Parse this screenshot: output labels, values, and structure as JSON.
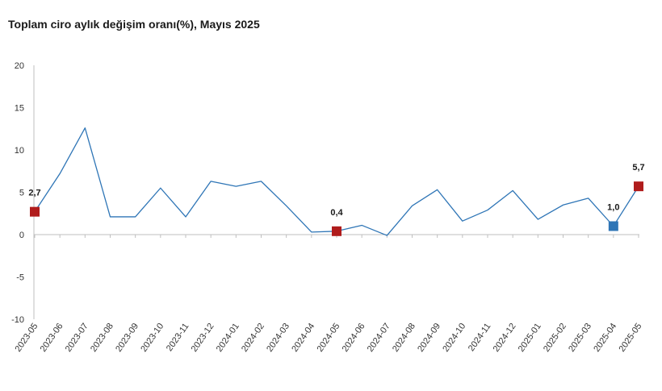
{
  "chart_data": {
    "type": "line",
    "title": "Toplam ciro aylık değişim oranı(%), Mayıs 2025",
    "xlabel": "",
    "ylabel": "",
    "ylim": [
      -10,
      20
    ],
    "yticks": [
      -10,
      -5,
      0,
      5,
      10,
      15,
      20
    ],
    "ytick_labels": [
      "-10",
      "-5",
      "0",
      "5",
      "10",
      "15",
      "20"
    ],
    "grid": false,
    "categories": [
      "2023-05",
      "2023-06",
      "2023-07",
      "2023-08",
      "2023-09",
      "2023-10",
      "2023-11",
      "2023-12",
      "2024-01",
      "2024-02",
      "2024-03",
      "2024-04",
      "2024-05",
      "2024-06",
      "2024-07",
      "2024-08",
      "2024-09",
      "2024-10",
      "2024-11",
      "2024-12",
      "2025-01",
      "2025-02",
      "2025-03",
      "2025-04",
      "2025-05"
    ],
    "series": [
      {
        "values": [
          2.7,
          7.2,
          12.6,
          2.1,
          2.1,
          5.5,
          2.1,
          6.3,
          5.7,
          6.3,
          3.4,
          0.3,
          0.4,
          1.1,
          -0.1,
          3.4,
          5.3,
          1.6,
          2.9,
          5.2,
          1.8,
          3.5,
          4.3,
          1.0,
          5.7
        ],
        "color": "#2e75b6"
      }
    ],
    "highlights": [
      {
        "category": "2023-05",
        "value": 2.7,
        "label": "2,7",
        "color": "#b01c1c"
      },
      {
        "category": "2024-05",
        "value": 0.4,
        "label": "0,4",
        "color": "#b01c1c"
      },
      {
        "category": "2025-04",
        "value": 1.0,
        "label": "1,0",
        "color": "#2e75b6"
      },
      {
        "category": "2025-05",
        "value": 5.7,
        "label": "5,7",
        "color": "#b01c1c"
      }
    ],
    "colors": {
      "line": "#2e75b6",
      "axis": "#bfbfbf",
      "text": "#333333"
    }
  }
}
